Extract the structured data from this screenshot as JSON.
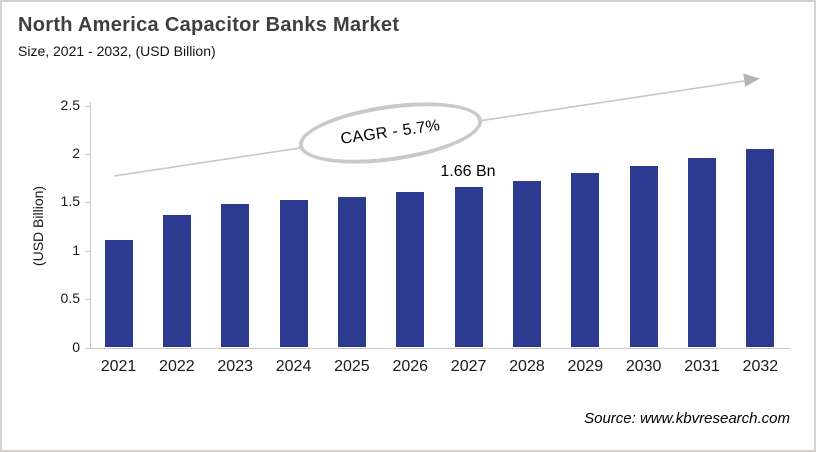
{
  "header": {
    "title": "North America Capacitor Banks Market",
    "subtitle": "Size, 2021 - 2032, (USD Billion)"
  },
  "footer": {
    "source": "Source: www.kbvresearch.com"
  },
  "colors": {
    "bar": "#2c3a90",
    "axis": "#c9c9c9",
    "arrow_line": "#c7c7c7",
    "arrow_head": "#b5b5b5",
    "title_text": "#3f3f3f"
  },
  "chart_data": {
    "type": "bar",
    "title": "North America Capacitor Banks Market Size, 2021 - 2032, (USD Billion)",
    "categories": [
      "2021",
      "2022",
      "2023",
      "2024",
      "2025",
      "2026",
      "2027",
      "2028",
      "2029",
      "2030",
      "2031",
      "2032"
    ],
    "values": [
      1.11,
      1.37,
      1.48,
      1.52,
      1.55,
      1.61,
      1.66,
      1.72,
      1.8,
      1.88,
      1.96,
      2.05
    ],
    "unit": "USD Billion",
    "xlabel": "",
    "ylabel": "(USD Billion)",
    "ylim": [
      0,
      2.5
    ],
    "y_ticks": [
      0,
      0.5,
      1,
      1.5,
      2,
      2.5
    ],
    "y_tick_labels": [
      "0",
      "0.5",
      "1",
      "1.5",
      "2",
      "2.5"
    ],
    "grid": false,
    "legend": false,
    "data_labels": [
      {
        "category": "2027",
        "text": "1.66 Bn"
      }
    ],
    "annotations": [
      {
        "text": "CAGR - 5.7%",
        "shape": "ellipse"
      }
    ],
    "trend_arrow": true
  }
}
